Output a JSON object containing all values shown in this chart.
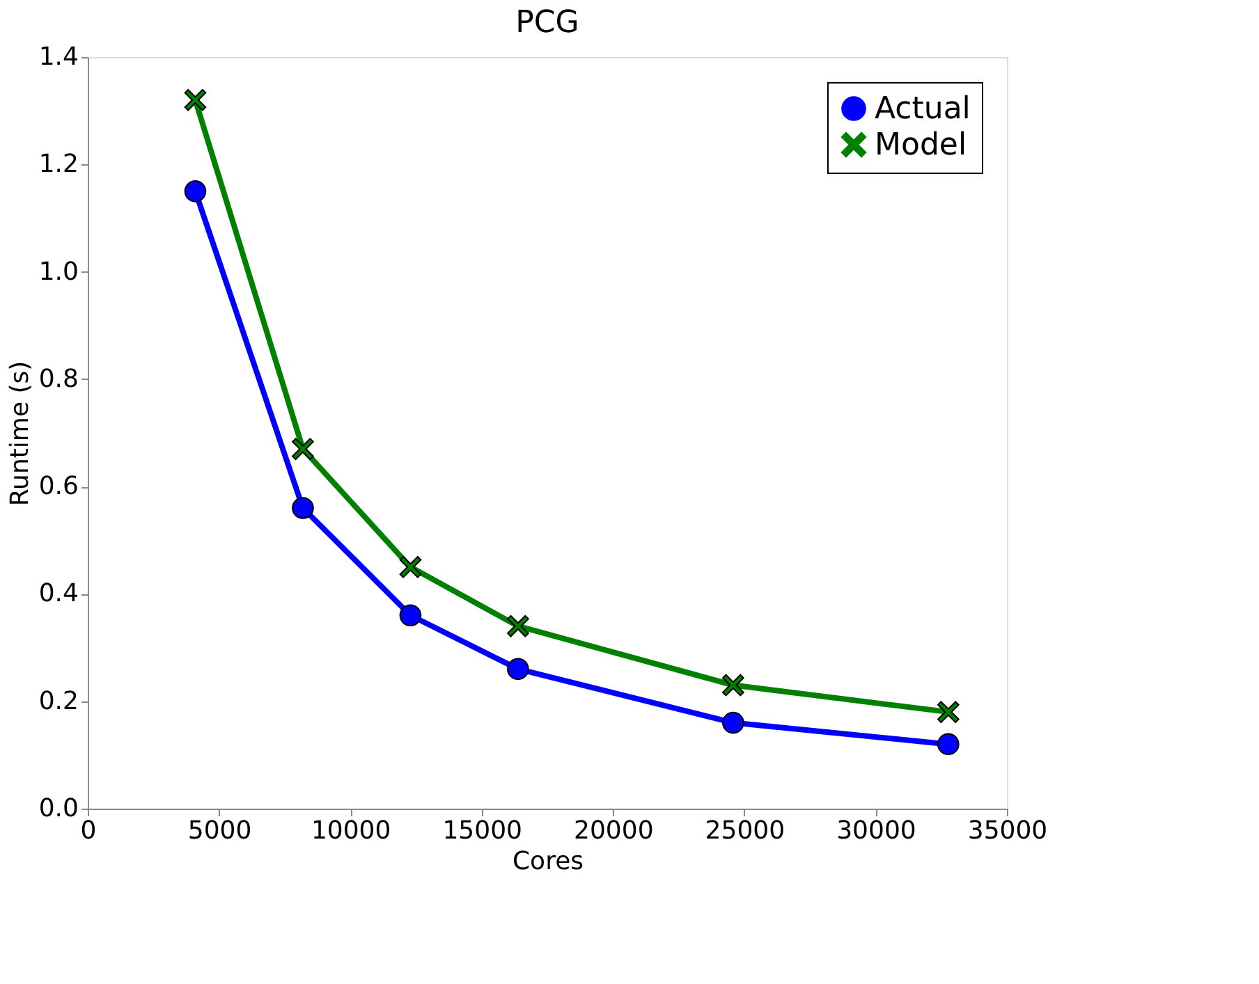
{
  "chart_data": {
    "type": "line",
    "title": "PCG",
    "xlabel": "Cores",
    "ylabel": "Runtime (s)",
    "x": [
      4096,
      8192,
      12288,
      16384,
      24576,
      32768
    ],
    "series": [
      {
        "name": "Actual",
        "color": "#0000ff",
        "marker": "circle",
        "values": [
          1.15,
          0.56,
          0.36,
          0.26,
          0.16,
          0.12
        ]
      },
      {
        "name": "Model",
        "color": "#008000",
        "marker": "cross",
        "values": [
          1.32,
          0.67,
          0.45,
          0.34,
          0.23,
          0.18
        ]
      }
    ],
    "xlim": [
      0,
      35000
    ],
    "xticks": [
      0,
      5000,
      10000,
      15000,
      20000,
      25000,
      30000,
      35000
    ],
    "ylim": [
      0,
      1.4
    ],
    "yticks": [
      {
        "value": 0,
        "label": "0.0"
      },
      0.2,
      0.4,
      0.6,
      0.8,
      {
        "value": 1,
        "label": "1.0"
      },
      1.2,
      1.4
    ],
    "grid": false,
    "legend": "top right",
    "line_style": "solid"
  }
}
